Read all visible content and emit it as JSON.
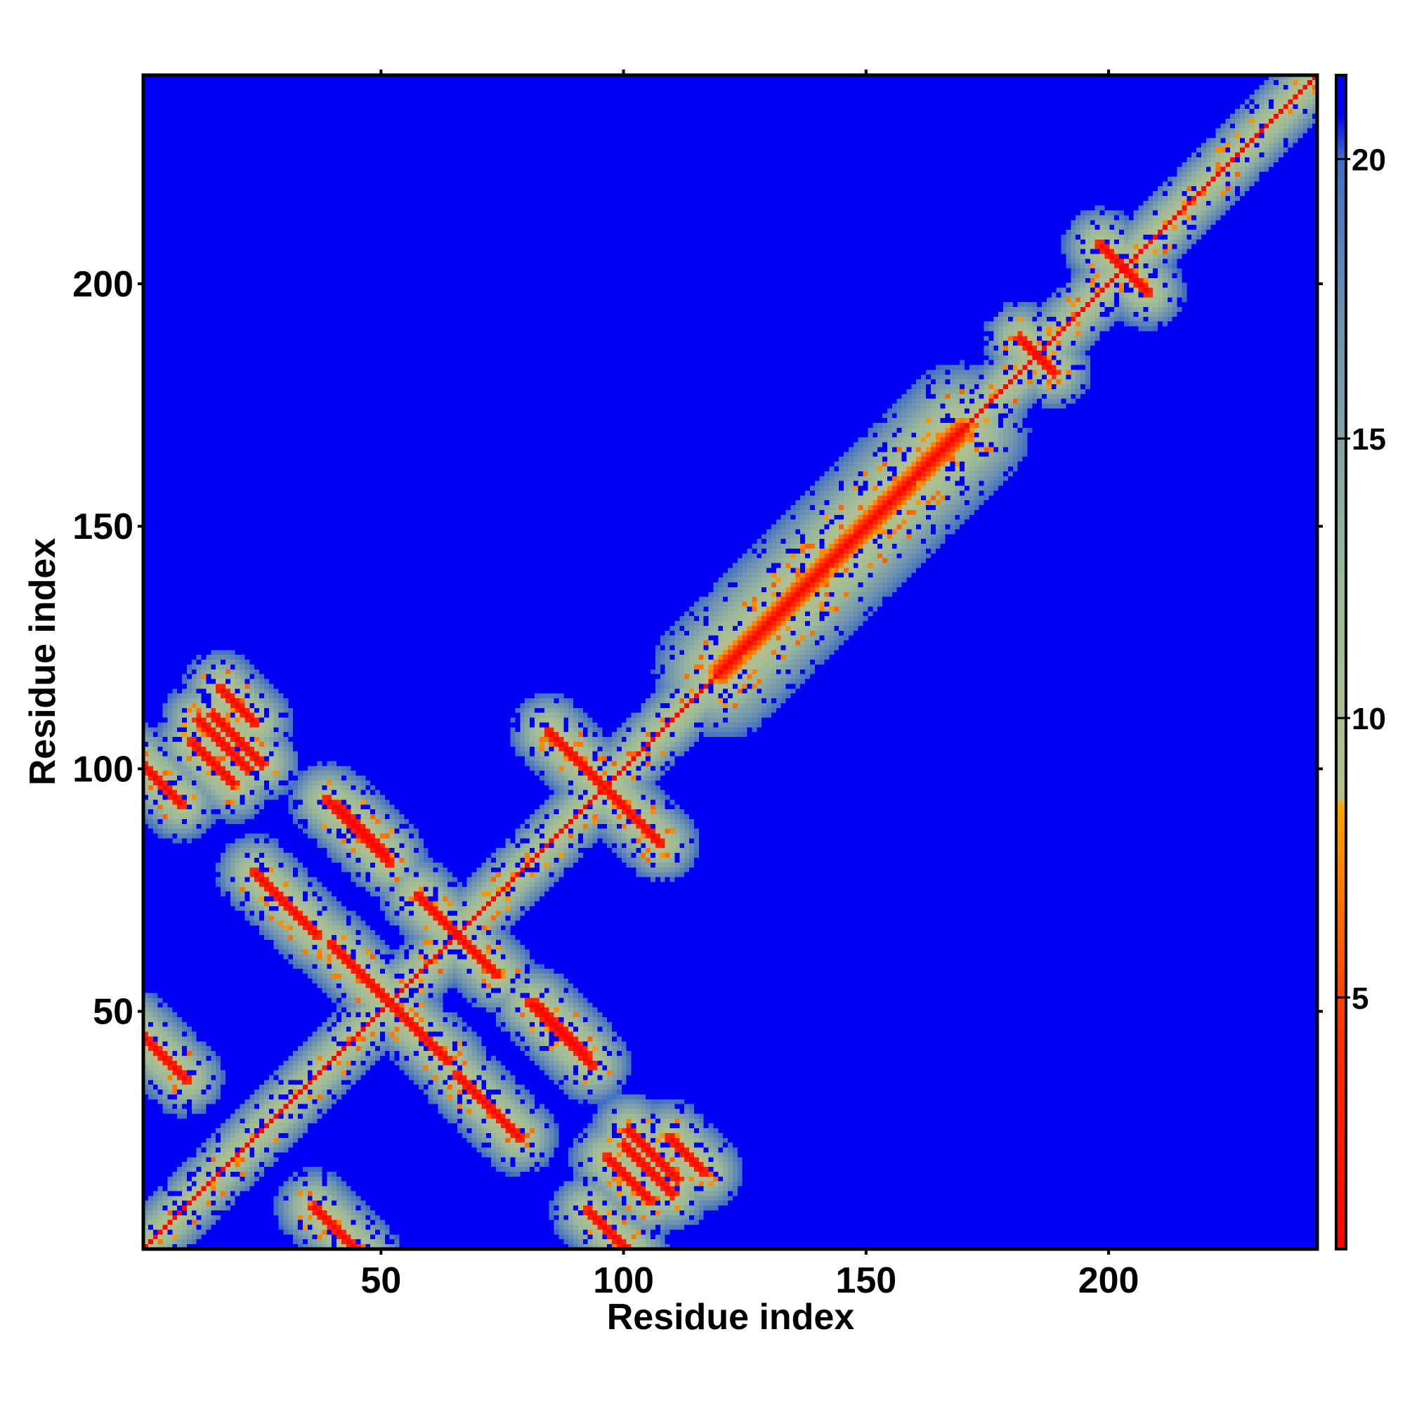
{
  "chart_data": {
    "type": "heatmap",
    "title": "",
    "xlabel": "Residue index",
    "ylabel": "Residue index",
    "xlim": [
      1,
      243
    ],
    "ylim": [
      1,
      243
    ],
    "x_ticks": [
      50,
      100,
      150,
      200
    ],
    "y_ticks": [
      50,
      100,
      150,
      200
    ],
    "colorbar": {
      "ticks": [
        5,
        10,
        15,
        20
      ],
      "range": [
        0.5,
        21.5
      ],
      "colors": [
        {
          "value": 0.5,
          "color": "#ff0000"
        },
        {
          "value": 4.5,
          "color": "#ff3300"
        },
        {
          "value": 8.4,
          "color": "#ffa500"
        },
        {
          "value": 8.6,
          "color": "#b4c08c"
        },
        {
          "value": 12.5,
          "color": "#9ab89a"
        },
        {
          "value": 17.0,
          "color": "#6f92b0"
        },
        {
          "value": 20.0,
          "color": "#3e6ec4"
        },
        {
          "value": 20.8,
          "color": "#0000f5"
        }
      ]
    },
    "background_value": 21,
    "background_color": "#0000f5",
    "features": [
      {
        "kind": "diagonal",
        "from": 1,
        "to": 243
      },
      {
        "kind": "antiparallel_pair",
        "center": [
          95,
          97
        ],
        "length": 30
      },
      {
        "kind": "antiparallel_pair",
        "center": [
          65,
          66
        ],
        "length": 22
      },
      {
        "kind": "antiparallel_pair",
        "center": [
          45,
          87
        ],
        "length": 18
      },
      {
        "kind": "antiparallel_pair",
        "center": [
          58,
          45
        ],
        "length": 16
      },
      {
        "kind": "antiparallel_pair",
        "center": [
          30,
          72
        ],
        "length": 18
      },
      {
        "kind": "antiparallel_pair",
        "center": [
          105,
          17
        ],
        "length": 14
      },
      {
        "kind": "antiparallel_pair",
        "center": [
          15,
          101
        ],
        "length": 12
      },
      {
        "kind": "antiparallel_pair",
        "center": [
          20,
          106
        ],
        "length": 14
      },
      {
        "kind": "antiparallel_pair",
        "center": [
          40,
          5
        ],
        "length": 12
      },
      {
        "kind": "antiparallel_pair",
        "center": [
          97,
          4
        ],
        "length": 12
      },
      {
        "kind": "antiparallel_pair",
        "center": [
          72,
          30
        ],
        "length": 14
      },
      {
        "kind": "antiparallel_pair",
        "center": [
          87,
          46
        ],
        "length": 14
      },
      {
        "kind": "antiparallel_pair",
        "center": [
          3,
          42
        ],
        "length": 12
      },
      {
        "kind": "antiparallel_pair",
        "center": [
          113,
          20
        ],
        "length": 10
      },
      {
        "kind": "antiparallel_pair",
        "center": [
          204,
          203
        ],
        "length": 12
      },
      {
        "kind": "antiparallel_pair",
        "center": [
          185,
          186
        ],
        "length": 8
      },
      {
        "kind": "band",
        "from": 120,
        "to": 170,
        "width": 14
      }
    ]
  }
}
